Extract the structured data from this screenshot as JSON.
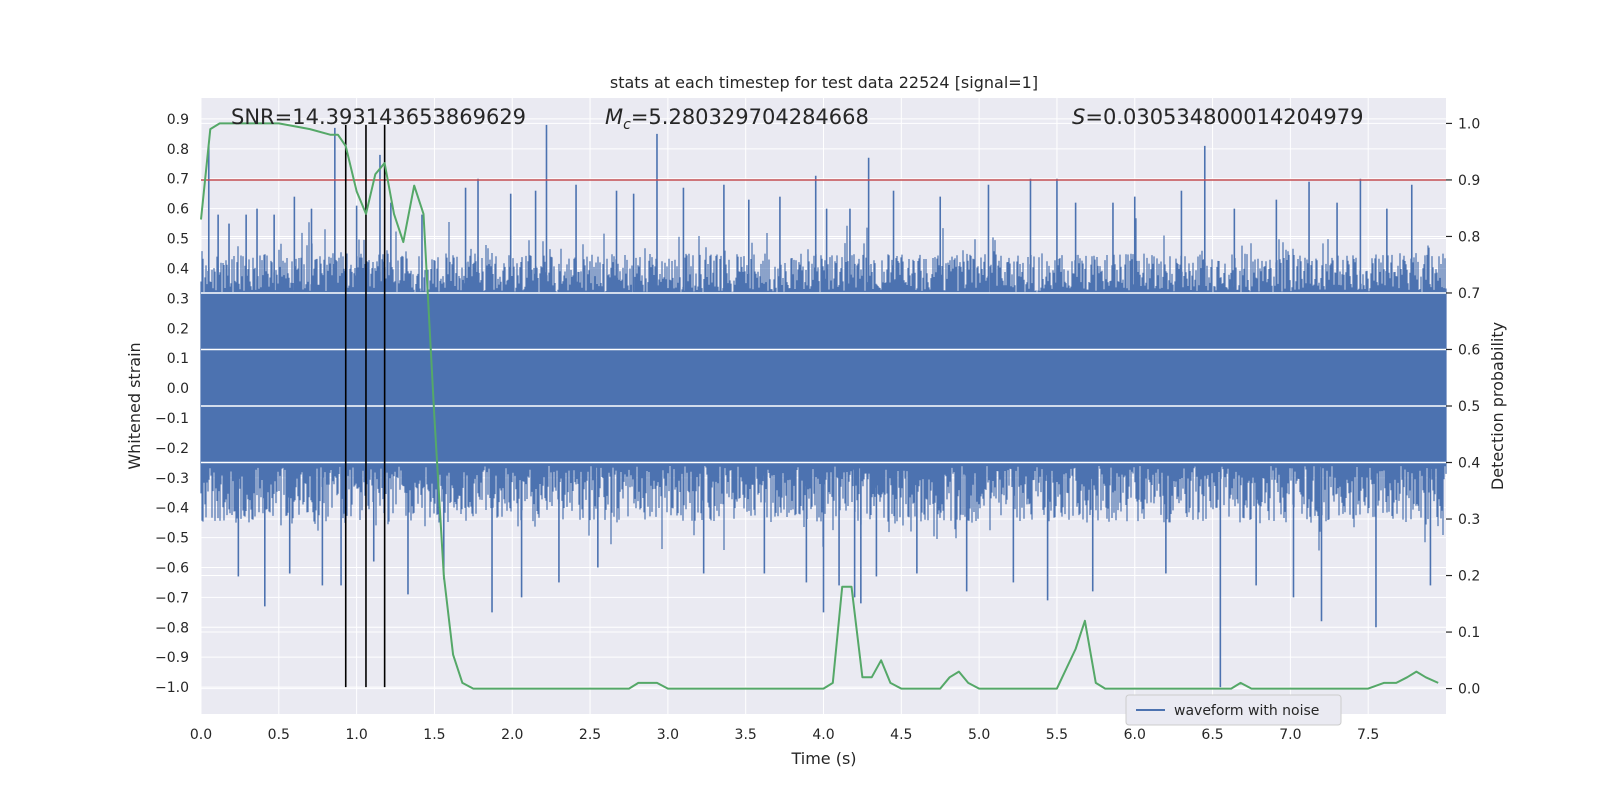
{
  "chart_data": {
    "type": "line",
    "title": "stats at each timestep for test data 22524 [signal=1]",
    "xlabel": "Time (s)",
    "ylabel_left": "Whitened strain",
    "ylabel_right": "Detection probability",
    "xlim": [
      0.0,
      8.0
    ],
    "ylim_left": [
      -1.09,
      0.97
    ],
    "ylim_right": [
      -0.045,
      1.045
    ],
    "grid": true,
    "x_ticks": [
      0.0,
      0.5,
      1.0,
      1.5,
      2.0,
      2.5,
      3.0,
      3.5,
      4.0,
      4.5,
      5.0,
      5.5,
      6.0,
      6.5,
      7.0,
      7.5
    ],
    "x_tick_labels": [
      "0.0",
      "0.5",
      "1.0",
      "1.5",
      "2.0",
      "2.5",
      "3.0",
      "3.5",
      "4.0",
      "4.5",
      "5.0",
      "5.5",
      "6.0",
      "6.5",
      "7.0",
      "7.5"
    ],
    "y_left_ticks": [
      0.9,
      0.8,
      0.7,
      0.6,
      0.5,
      0.4,
      0.3,
      0.2,
      0.1,
      0.0,
      -0.1,
      -0.2,
      -0.3,
      -0.4,
      -0.5,
      -0.6,
      -0.7,
      -0.8,
      -0.9,
      -1.0
    ],
    "y_left_tick_labels": [
      "0.9",
      "0.8",
      "0.7",
      "0.6",
      "0.5",
      "0.4",
      "0.3",
      "0.2",
      "0.1",
      "0.0",
      "−0.1",
      "−0.2",
      "−0.3",
      "−0.4",
      "−0.5",
      "−0.6",
      "−0.7",
      "−0.8",
      "−0.9",
      "−1.0"
    ],
    "y_right_ticks": [
      1.0,
      0.9,
      0.8,
      0.7,
      0.6,
      0.5,
      0.4,
      0.3,
      0.2,
      0.1,
      0.0
    ],
    "y_right_tick_labels": [
      "1.0",
      "0.9",
      "0.8",
      "0.7",
      "0.6",
      "0.5",
      "0.4",
      "0.3",
      "0.2",
      "0.1",
      "0.0"
    ],
    "annotations": {
      "snr": "SNR=14.393143653869629",
      "mc_symbol": "M",
      "mc_subscript": "c",
      "mc_value": "=5.280329704284668",
      "s_symbol": "S",
      "s_value": "=0.030534800014204979"
    },
    "threshold_line": {
      "axis": "right",
      "y": 0.9,
      "color": "#c44e52"
    },
    "vertical_markers": {
      "x": [
        0.93,
        1.06,
        1.18
      ],
      "ymin": -1.0,
      "ymax": 0.88,
      "color": "#000000"
    },
    "series": [
      {
        "name": "waveform with noise",
        "axis": "left",
        "color": "#4c72b0",
        "band": {
          "x_start": 0.0,
          "x_end": 8.0,
          "low": -0.45,
          "high": 0.45,
          "core_low": -0.26,
          "core_high": 0.32
        },
        "spikes": [
          [
            0.05,
            0.81
          ],
          [
            0.11,
            0.58
          ],
          [
            0.18,
            0.55
          ],
          [
            0.24,
            -0.63
          ],
          [
            0.29,
            0.58
          ],
          [
            0.36,
            0.6
          ],
          [
            0.41,
            -0.73
          ],
          [
            0.47,
            0.58
          ],
          [
            0.57,
            -0.62
          ],
          [
            0.6,
            0.64
          ],
          [
            0.71,
            0.6
          ],
          [
            0.78,
            -0.66
          ],
          [
            0.86,
            0.87
          ],
          [
            0.9,
            -0.66
          ],
          [
            1.0,
            0.61
          ],
          [
            1.11,
            -0.58
          ],
          [
            1.15,
            0.78
          ],
          [
            1.22,
            0.62
          ],
          [
            1.33,
            -0.69
          ],
          [
            1.42,
            0.58
          ],
          [
            1.56,
            -0.64
          ],
          [
            1.7,
            0.67
          ],
          [
            1.78,
            0.7
          ],
          [
            1.87,
            -0.75
          ],
          [
            1.99,
            0.65
          ],
          [
            2.06,
            -0.7
          ],
          [
            2.15,
            0.66
          ],
          [
            2.22,
            0.88
          ],
          [
            2.3,
            -0.65
          ],
          [
            2.41,
            0.68
          ],
          [
            2.55,
            -0.6
          ],
          [
            2.67,
            0.66
          ],
          [
            2.78,
            0.65
          ],
          [
            2.93,
            0.85
          ],
          [
            3.1,
            0.67
          ],
          [
            3.23,
            -0.62
          ],
          [
            3.36,
            0.68
          ],
          [
            3.52,
            0.63
          ],
          [
            3.62,
            -0.62
          ],
          [
            3.72,
            0.64
          ],
          [
            3.89,
            -0.65
          ],
          [
            3.95,
            0.71
          ],
          [
            4.0,
            -0.75
          ],
          [
            4.02,
            0.6
          ],
          [
            4.1,
            -0.66
          ],
          [
            4.17,
            0.6
          ],
          [
            4.2,
            -0.7
          ],
          [
            4.24,
            -0.72
          ],
          [
            4.29,
            0.77
          ],
          [
            4.34,
            -0.63
          ],
          [
            4.45,
            0.66
          ],
          [
            4.6,
            -0.62
          ],
          [
            4.75,
            0.64
          ],
          [
            4.92,
            -0.68
          ],
          [
            5.06,
            0.68
          ],
          [
            5.22,
            -0.65
          ],
          [
            5.33,
            0.7
          ],
          [
            5.44,
            -0.71
          ],
          [
            5.5,
            0.7
          ],
          [
            5.62,
            0.62
          ],
          [
            5.73,
            -0.68
          ],
          [
            5.86,
            0.62
          ],
          [
            6.0,
            0.64
          ],
          [
            6.2,
            -0.62
          ],
          [
            6.3,
            0.66
          ],
          [
            6.45,
            0.81
          ],
          [
            6.55,
            -1.0
          ],
          [
            6.64,
            0.6
          ],
          [
            6.78,
            -0.66
          ],
          [
            6.91,
            0.63
          ],
          [
            7.02,
            -0.7
          ],
          [
            7.12,
            0.69
          ],
          [
            7.2,
            -0.78
          ],
          [
            7.3,
            0.62
          ],
          [
            7.45,
            0.7
          ],
          [
            7.55,
            -0.8
          ],
          [
            7.62,
            0.6
          ],
          [
            7.78,
            0.68
          ],
          [
            7.9,
            -0.66
          ]
        ]
      },
      {
        "name": "detection probability",
        "axis": "right",
        "color": "#55a868",
        "x": [
          0.0,
          0.06,
          0.12,
          0.25,
          0.5,
          0.7,
          0.83,
          0.88,
          0.93,
          1.0,
          1.06,
          1.12,
          1.18,
          1.24,
          1.3,
          1.37,
          1.43,
          1.5,
          1.56,
          1.62,
          1.68,
          1.75,
          1.87,
          2.0,
          2.25,
          2.5,
          2.62,
          2.75,
          2.81,
          2.93,
          3.0,
          3.12,
          3.25,
          3.37,
          3.5,
          3.75,
          3.87,
          4.0,
          4.06,
          4.12,
          4.18,
          4.25,
          4.31,
          4.37,
          4.43,
          4.5,
          4.56,
          4.62,
          4.75,
          4.81,
          4.87,
          4.93,
          5.0,
          5.06,
          5.25,
          5.37,
          5.5,
          5.62,
          5.68,
          5.75,
          5.81,
          5.87,
          6.0,
          6.25,
          6.5,
          6.62,
          6.68,
          6.75,
          6.81,
          6.87,
          6.93,
          7.0,
          7.12,
          7.25,
          7.5,
          7.6,
          7.68,
          7.75,
          7.81,
          7.87,
          7.95
        ],
        "y": [
          0.83,
          0.99,
          1.0,
          1.0,
          1.0,
          0.99,
          0.98,
          0.98,
          0.96,
          0.88,
          0.84,
          0.91,
          0.93,
          0.84,
          0.79,
          0.89,
          0.84,
          0.48,
          0.2,
          0.06,
          0.01,
          0.0,
          0.0,
          0.0,
          0.0,
          0.0,
          0.0,
          0.0,
          0.01,
          0.01,
          0.0,
          0.0,
          0.0,
          0.0,
          0.0,
          0.0,
          0.0,
          0.0,
          0.01,
          0.18,
          0.18,
          0.02,
          0.02,
          0.05,
          0.01,
          0.0,
          0.0,
          0.0,
          0.0,
          0.02,
          0.03,
          0.01,
          0.0,
          0.0,
          0.0,
          0.0,
          0.0,
          0.07,
          0.12,
          0.01,
          0.0,
          0.0,
          0.0,
          0.0,
          0.0,
          0.0,
          0.01,
          0.0,
          0.0,
          0.0,
          0.0,
          0.0,
          0.0,
          0.0,
          0.0,
          0.01,
          0.01,
          0.02,
          0.03,
          0.02,
          0.01
        ]
      }
    ],
    "legend": {
      "placement": "lower-right",
      "entries": [
        {
          "label": "waveform with noise",
          "color": "#4c72b0"
        }
      ]
    },
    "colors": {
      "plot_background": "#eaeaf2",
      "grid": "#ffffff",
      "text": "#262626"
    }
  }
}
